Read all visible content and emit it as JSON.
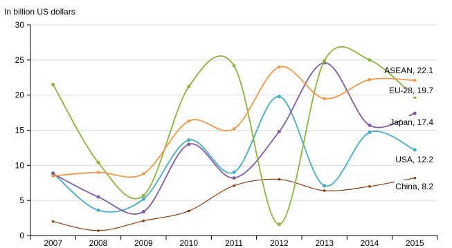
{
  "chart_data": {
    "type": "line",
    "unit_label": "In billion US dollars",
    "x": [
      "2007",
      "2008",
      "2009",
      "2010",
      "2011",
      "2012",
      "2013",
      "2014",
      "2015"
    ],
    "ylim": [
      0,
      30
    ],
    "yticks": [
      0,
      5,
      10,
      15,
      20,
      25,
      30
    ],
    "grid": true,
    "series": [
      {
        "name": "ASEAN",
        "end_label": "ASEAN, 22.1",
        "color": "#f79646",
        "values": [
          8.5,
          9.0,
          8.8,
          16.3,
          15.2,
          24.0,
          19.5,
          22.2,
          22.1
        ]
      },
      {
        "name": "EU-28",
        "end_label": "EU-28, 19.7",
        "color": "#8db33b",
        "values": [
          21.5,
          10.4,
          5.7,
          21.2,
          24.2,
          1.6,
          24.9,
          25.0,
          19.7
        ]
      },
      {
        "name": "Japan",
        "end_label": "Japan, 17.4",
        "color": "#7f5ba6",
        "values": [
          8.8,
          5.5,
          3.4,
          13.0,
          8.2,
          14.8,
          24.6,
          15.7,
          17.4
        ]
      },
      {
        "name": "USA",
        "end_label": "USA, 12.2",
        "color": "#43adc5",
        "values": [
          8.9,
          3.6,
          5.2,
          13.6,
          9.0,
          19.8,
          7.1,
          14.7,
          12.2
        ]
      },
      {
        "name": "China",
        "end_label": "China, 8.2",
        "color": "#8b3a0e",
        "values": [
          2.0,
          0.7,
          2.1,
          3.5,
          7.1,
          8.0,
          6.4,
          7.0,
          8.2
        ]
      }
    ]
  }
}
